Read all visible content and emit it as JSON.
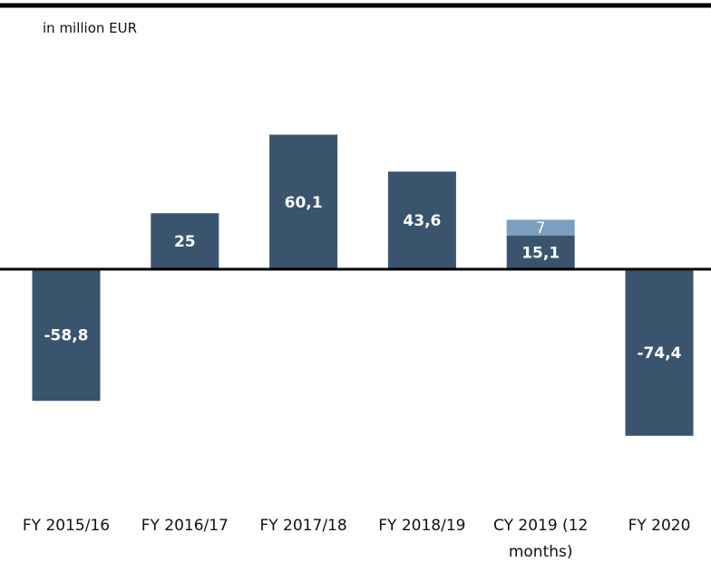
{
  "chart_data": {
    "type": "bar",
    "stacked": true,
    "subtitle": "in million EUR",
    "categories": [
      "FY 2015/16",
      "FY 2016/17",
      "FY 2017/18",
      "FY 2018/19",
      "CY 2019 (12 months)",
      "FY 2020"
    ],
    "series": [
      {
        "color": "#3a546e",
        "values": [
          -58.8,
          25,
          60.1,
          43.6,
          15.1,
          -74.4
        ],
        "value_labels": [
          "-58,8",
          "25",
          "60,1",
          "43,6",
          "15,1",
          "-74,4"
        ]
      },
      {
        "color": "#7a9fbf",
        "values": [
          null,
          null,
          null,
          null,
          7,
          null
        ],
        "value_labels": [
          null,
          null,
          null,
          null,
          "7",
          null
        ]
      }
    ]
  }
}
